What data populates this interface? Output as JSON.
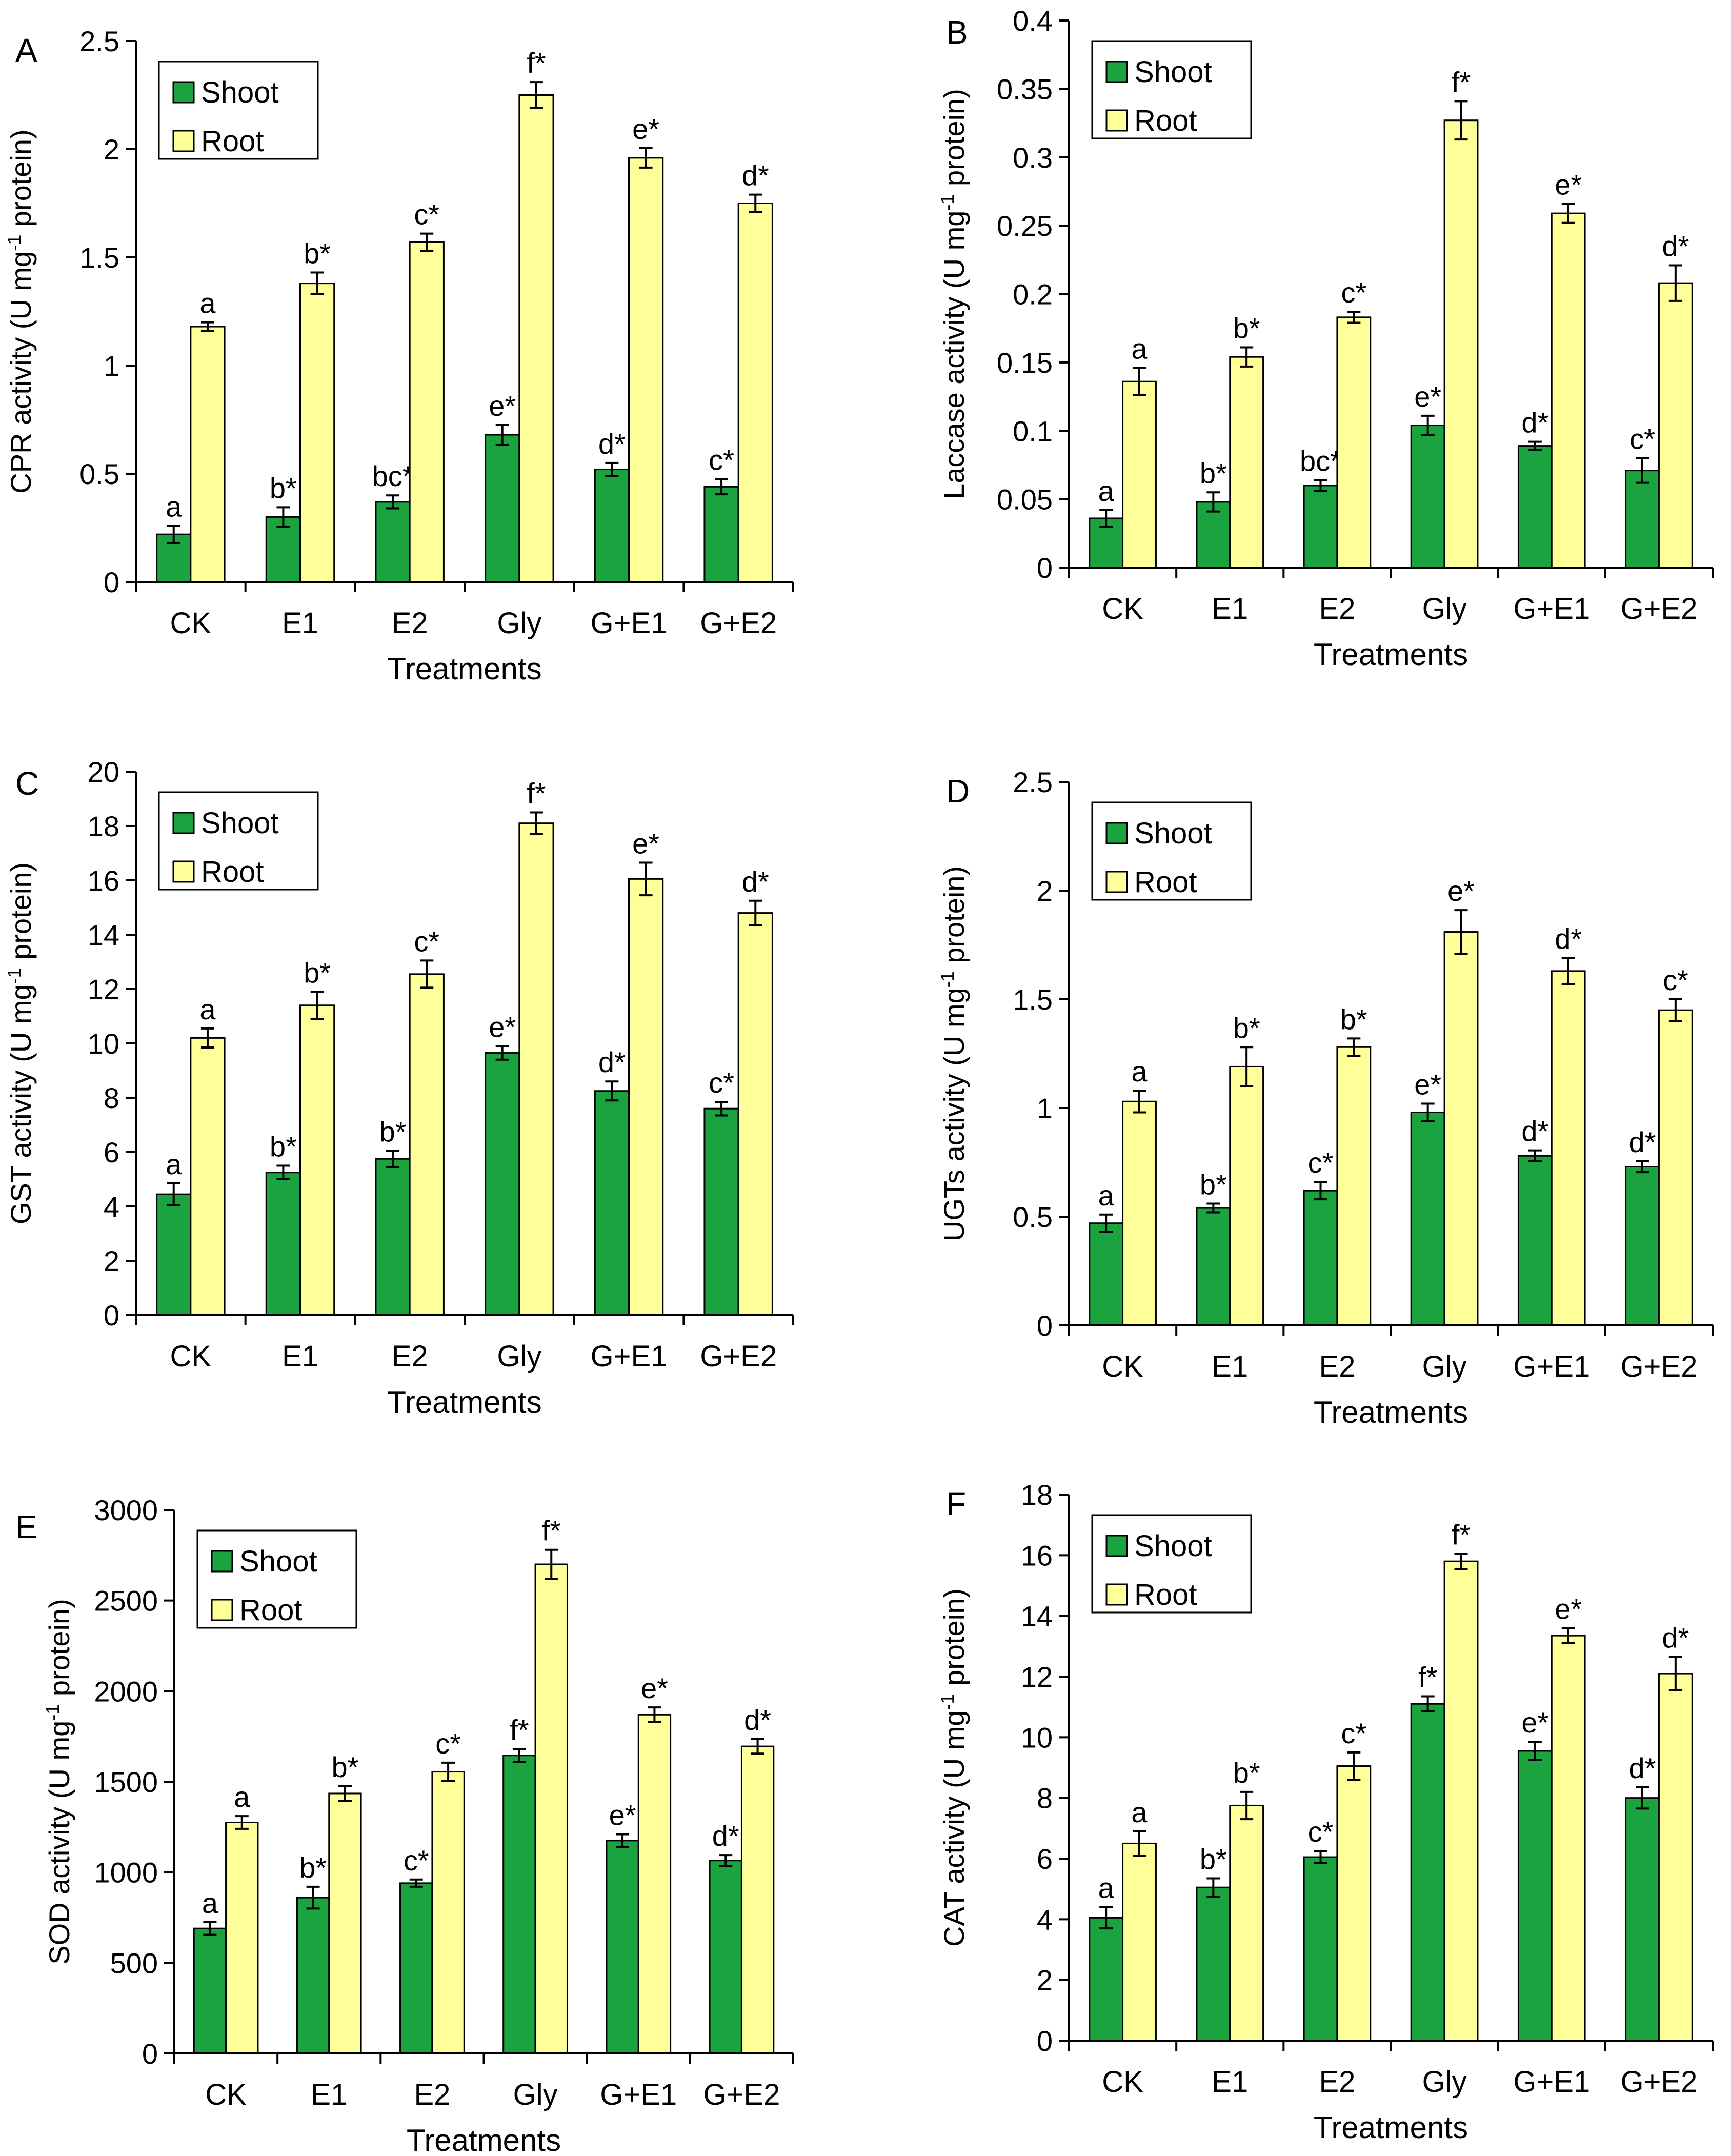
{
  "figure": {
    "colors": {
      "shoot": "#1aa33e",
      "root": "#ffff99",
      "axis": "#000000",
      "text": "#000000"
    },
    "chart_data": [
      {
        "type": "bar",
        "panel": "A",
        "title": "",
        "xlabel": "Treatments",
        "ylabel_main": "CPR activity (U mg",
        "ylabel_sup": "-1",
        "ylabel_tail": " protein)",
        "categories": [
          "CK",
          "E1",
          "E2",
          "Gly",
          "G+E1",
          "G+E2"
        ],
        "ylim": [
          0,
          2.5
        ],
        "yticks": [
          {
            "v": 0,
            "label": "0"
          },
          {
            "v": 0.5,
            "label": "0.5"
          },
          {
            "v": 1,
            "label": "1"
          },
          {
            "v": 1.5,
            "label": "1.5"
          },
          {
            "v": 2,
            "label": "2"
          },
          {
            "v": 2.5,
            "label": "2.5"
          }
        ],
        "legend_position": "top-left",
        "series": [
          {
            "name": "Shoot",
            "values": [
              0.22,
              0.3,
              0.37,
              0.68,
              0.52,
              0.44
            ],
            "errors": [
              0.04,
              0.045,
              0.03,
              0.045,
              0.03,
              0.035
            ],
            "labels": [
              "a",
              "b*",
              "bc*",
              "e*",
              "d*",
              "c*"
            ]
          },
          {
            "name": "Root",
            "values": [
              1.18,
              1.38,
              1.57,
              2.25,
              1.96,
              1.75
            ],
            "errors": [
              0.02,
              0.05,
              0.04,
              0.06,
              0.045,
              0.04
            ],
            "labels": [
              "a",
              "b*",
              "c*",
              "f*",
              "e*",
              "d*"
            ]
          }
        ]
      },
      {
        "type": "bar",
        "panel": "B",
        "title": "",
        "xlabel": "Treatments",
        "ylabel_main": "Laccase activity (U mg",
        "ylabel_sup": "-1",
        "ylabel_tail": " protein)",
        "categories": [
          "CK",
          "E1",
          "E2",
          "Gly",
          "G+E1",
          "G+E2"
        ],
        "ylim": [
          0,
          0.4
        ],
        "yticks": [
          {
            "v": 0,
            "label": "0"
          },
          {
            "v": 0.05,
            "label": "0.05"
          },
          {
            "v": 0.1,
            "label": "0.1"
          },
          {
            "v": 0.15,
            "label": "0.15"
          },
          {
            "v": 0.2,
            "label": "0.2"
          },
          {
            "v": 0.25,
            "label": "0.25"
          },
          {
            "v": 0.3,
            "label": "0.3"
          },
          {
            "v": 0.35,
            "label": "0.35"
          },
          {
            "v": 0.4,
            "label": "0.4"
          }
        ],
        "legend_position": "top-left",
        "series": [
          {
            "name": "Shoot",
            "values": [
              0.036,
              0.048,
              0.06,
              0.104,
              0.089,
              0.071
            ],
            "errors": [
              0.006,
              0.007,
              0.004,
              0.007,
              0.003,
              0.009
            ],
            "labels": [
              "a",
              "b*",
              "bc*",
              "e*",
              "d*",
              "c*"
            ]
          },
          {
            "name": "Root",
            "values": [
              0.136,
              0.154,
              0.183,
              0.327,
              0.259,
              0.208
            ],
            "errors": [
              0.01,
              0.007,
              0.004,
              0.014,
              0.007,
              0.013
            ],
            "labels": [
              "a",
              "b*",
              "c*",
              "f*",
              "e*",
              "d*"
            ]
          }
        ]
      },
      {
        "type": "bar",
        "panel": "C",
        "title": "",
        "xlabel": "Treatments",
        "ylabel_main": "GST activity (U mg",
        "ylabel_sup": "-1",
        "ylabel_tail": " protein)",
        "categories": [
          "CK",
          "E1",
          "E2",
          "Gly",
          "G+E1",
          "G+E2"
        ],
        "ylim": [
          0,
          20
        ],
        "yticks": [
          {
            "v": 0,
            "label": "0"
          },
          {
            "v": 2,
            "label": "2"
          },
          {
            "v": 4,
            "label": "4"
          },
          {
            "v": 6,
            "label": "6"
          },
          {
            "v": 8,
            "label": "8"
          },
          {
            "v": 10,
            "label": "10"
          },
          {
            "v": 12,
            "label": "12"
          },
          {
            "v": 14,
            "label": "14"
          },
          {
            "v": 16,
            "label": "16"
          },
          {
            "v": 18,
            "label": "18"
          },
          {
            "v": 20,
            "label": "20"
          }
        ],
        "legend_position": "top-left",
        "series": [
          {
            "name": "Shoot",
            "values": [
              4.45,
              5.25,
              5.75,
              9.65,
              8.25,
              7.6
            ],
            "errors": [
              0.4,
              0.25,
              0.3,
              0.25,
              0.35,
              0.25
            ],
            "labels": [
              "a",
              "b*",
              "b*",
              "e*",
              "d*",
              "c*"
            ]
          },
          {
            "name": "Root",
            "values": [
              10.2,
              11.4,
              12.55,
              18.1,
              16.05,
              14.8
            ],
            "errors": [
              0.35,
              0.5,
              0.5,
              0.4,
              0.6,
              0.45
            ],
            "labels": [
              "a",
              "b*",
              "c*",
              "f*",
              "e*",
              "d*"
            ]
          }
        ]
      },
      {
        "type": "bar",
        "panel": "D",
        "title": "",
        "xlabel": "Treatments",
        "ylabel_main": "UGTs activity (U mg",
        "ylabel_sup": "-1",
        "ylabel_tail": " protein)",
        "categories": [
          "CK",
          "E1",
          "E2",
          "Gly",
          "G+E1",
          "G+E2"
        ],
        "ylim": [
          0,
          2.5
        ],
        "yticks": [
          {
            "v": 0,
            "label": "0"
          },
          {
            "v": 0.5,
            "label": "0.5"
          },
          {
            "v": 1,
            "label": "1"
          },
          {
            "v": 1.5,
            "label": "1.5"
          },
          {
            "v": 2,
            "label": "2"
          },
          {
            "v": 2.5,
            "label": "2.5"
          }
        ],
        "legend_position": "top-left",
        "series": [
          {
            "name": "Shoot",
            "values": [
              0.47,
              0.54,
              0.62,
              0.98,
              0.78,
              0.73
            ],
            "errors": [
              0.04,
              0.02,
              0.04,
              0.04,
              0.025,
              0.025
            ],
            "labels": [
              "a",
              "b*",
              "c*",
              "e*",
              "d*",
              "d*"
            ]
          },
          {
            "name": "Root",
            "values": [
              1.03,
              1.19,
              1.28,
              1.81,
              1.63,
              1.45
            ],
            "errors": [
              0.05,
              0.09,
              0.04,
              0.1,
              0.06,
              0.05
            ],
            "labels": [
              "a",
              "b*",
              "b*",
              "e*",
              "d*",
              "c*"
            ]
          }
        ]
      },
      {
        "type": "bar",
        "panel": "E",
        "title": "",
        "xlabel": "Treatments",
        "ylabel_main": "SOD activity (U mg",
        "ylabel_sup": "-1",
        "ylabel_tail": " protein)",
        "categories": [
          "CK",
          "E1",
          "E2",
          "Gly",
          "G+E1",
          "G+E2"
        ],
        "ylim": [
          0,
          3000
        ],
        "yticks": [
          {
            "v": 0,
            "label": "0"
          },
          {
            "v": 500,
            "label": "500"
          },
          {
            "v": 1000,
            "label": "1000"
          },
          {
            "v": 1500,
            "label": "1500"
          },
          {
            "v": 2000,
            "label": "2000"
          },
          {
            "v": 2500,
            "label": "2500"
          },
          {
            "v": 3000,
            "label": "3000"
          }
        ],
        "legend_position": "top-left",
        "series": [
          {
            "name": "Shoot",
            "values": [
              690,
              860,
              940,
              1645,
              1175,
              1065
            ],
            "errors": [
              35,
              60,
              20,
              35,
              35,
              30
            ],
            "labels": [
              "a",
              "b*",
              "c*",
              "f*",
              "e*",
              "d*"
            ]
          },
          {
            "name": "Root",
            "values": [
              1275,
              1435,
              1555,
              2700,
              1870,
              1695
            ],
            "errors": [
              35,
              40,
              50,
              80,
              40,
              40
            ],
            "labels": [
              "a",
              "b*",
              "c*",
              "f*",
              "e*",
              "d*"
            ]
          }
        ]
      },
      {
        "type": "bar",
        "panel": "F",
        "title": "",
        "xlabel": "Treatments",
        "ylabel_main": "CAT activity (U mg",
        "ylabel_sup": "-1",
        "ylabel_tail": " protein)",
        "categories": [
          "CK",
          "E1",
          "E2",
          "Gly",
          "G+E1",
          "G+E2"
        ],
        "ylim": [
          0,
          18
        ],
        "yticks": [
          {
            "v": 0,
            "label": "0"
          },
          {
            "v": 2,
            "label": "2"
          },
          {
            "v": 4,
            "label": "4"
          },
          {
            "v": 6,
            "label": "6"
          },
          {
            "v": 8,
            "label": "8"
          },
          {
            "v": 10,
            "label": "10"
          },
          {
            "v": 12,
            "label": "12"
          },
          {
            "v": 14,
            "label": "14"
          },
          {
            "v": 16,
            "label": "16"
          },
          {
            "v": 18,
            "label": "18"
          }
        ],
        "legend_position": "top-left",
        "series": [
          {
            "name": "Shoot",
            "values": [
              4.05,
              5.05,
              6.05,
              11.1,
              9.55,
              8.0
            ],
            "errors": [
              0.35,
              0.3,
              0.2,
              0.25,
              0.3,
              0.35
            ],
            "labels": [
              "a",
              "b*",
              "c*",
              "f*",
              "e*",
              "d*"
            ]
          },
          {
            "name": "Root",
            "values": [
              6.5,
              7.75,
              9.05,
              15.8,
              13.35,
              12.1
            ],
            "errors": [
              0.4,
              0.45,
              0.45,
              0.25,
              0.25,
              0.55
            ],
            "labels": [
              "a",
              "b*",
              "c*",
              "f*",
              "e*",
              "d*"
            ]
          }
        ]
      }
    ]
  }
}
